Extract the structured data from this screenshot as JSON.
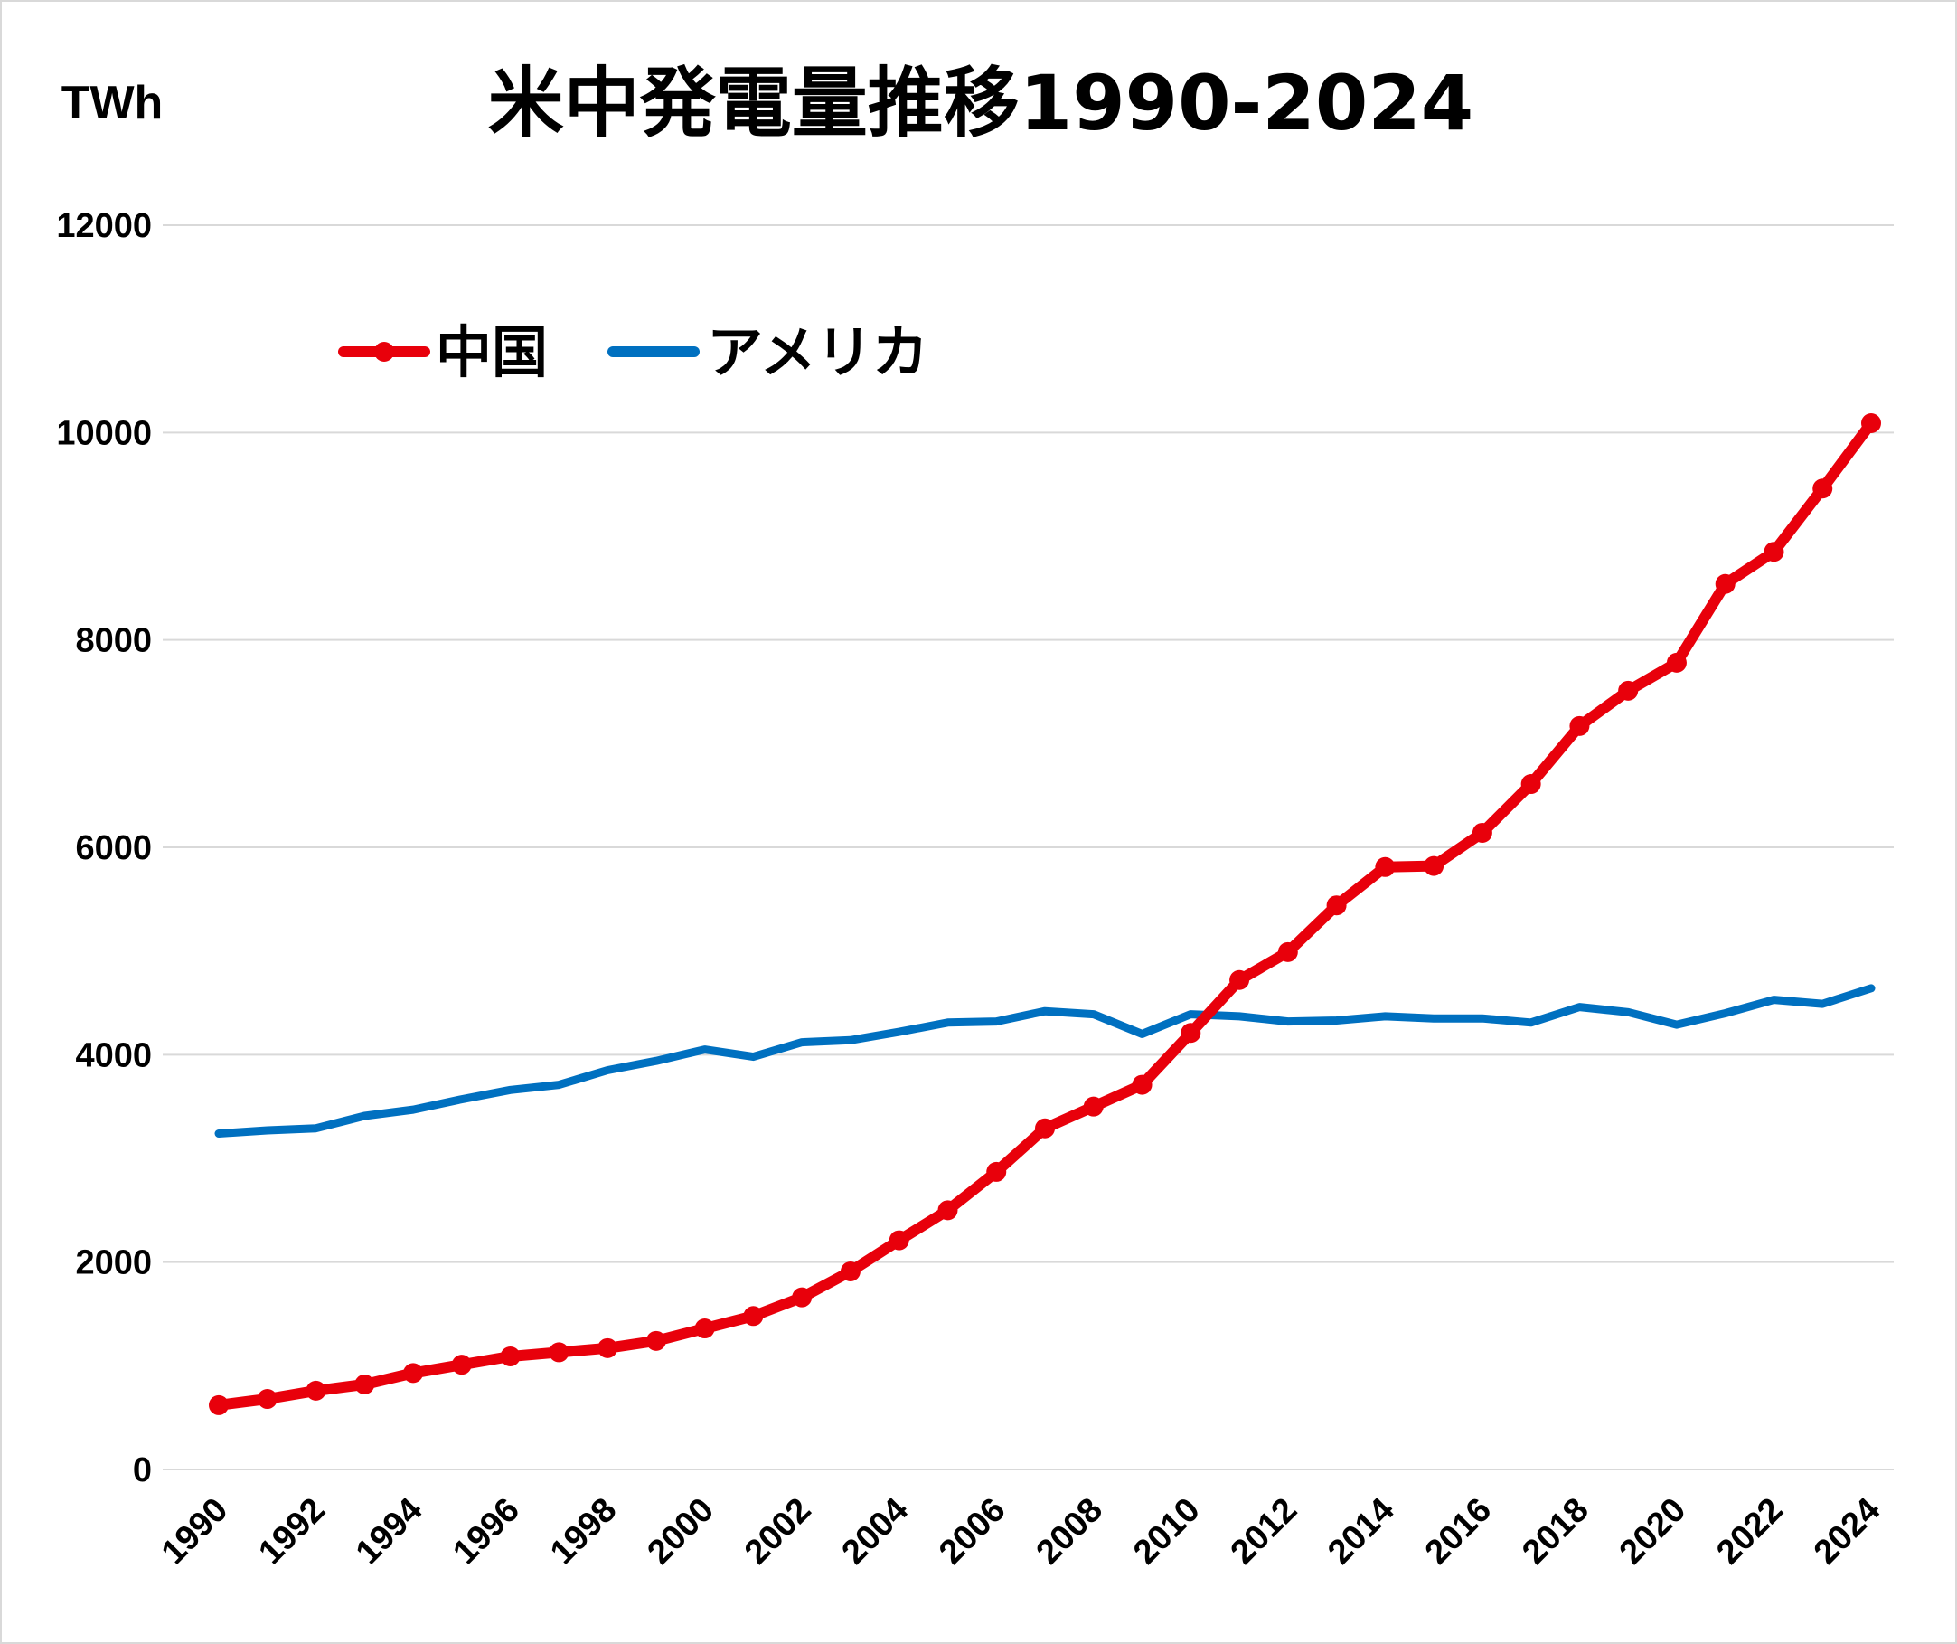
{
  "chart_data": {
    "type": "line",
    "title": "米中発電量推移1990-2024",
    "ylabel": "TWh",
    "xlabel": "",
    "ylim": [
      0,
      12000
    ],
    "yticks": [
      0,
      2000,
      4000,
      6000,
      8000,
      10000,
      12000
    ],
    "xticks": [
      1990,
      1992,
      1994,
      1996,
      1998,
      2000,
      2002,
      2004,
      2006,
      2008,
      2010,
      2012,
      2014,
      2016,
      2018,
      2020,
      2022,
      2024
    ],
    "grid": true,
    "legend": "top-left",
    "x": [
      1990,
      1991,
      1992,
      1993,
      1994,
      1995,
      1996,
      1997,
      1998,
      1999,
      2000,
      2001,
      2002,
      2003,
      2004,
      2005,
      2006,
      2007,
      2008,
      2009,
      2010,
      2011,
      2012,
      2013,
      2014,
      2015,
      2016,
      2017,
      2018,
      2019,
      2020,
      2021,
      2022,
      2023,
      2024
    ],
    "series": [
      {
        "name": "中国",
        "color": "#e8000b",
        "markers": true,
        "values": [
          620,
          680,
          760,
          820,
          930,
          1010,
          1090,
          1130,
          1170,
          1240,
          1360,
          1480,
          1660,
          1910,
          2210,
          2500,
          2870,
          3290,
          3500,
          3710,
          4210,
          4720,
          4990,
          5440,
          5810,
          5820,
          6140,
          6610,
          7170,
          7510,
          7780,
          8540,
          8850,
          9460,
          10090
        ]
      },
      {
        "name": "アメリカ",
        "color": "#0070c0",
        "markers": false,
        "values": [
          3240,
          3270,
          3290,
          3410,
          3470,
          3570,
          3660,
          3710,
          3850,
          3940,
          4050,
          3980,
          4120,
          4140,
          4220,
          4310,
          4320,
          4420,
          4390,
          4200,
          4390,
          4370,
          4320,
          4330,
          4370,
          4350,
          4350,
          4310,
          4460,
          4410,
          4290,
          4400,
          4530,
          4490,
          4640
        ]
      }
    ]
  }
}
